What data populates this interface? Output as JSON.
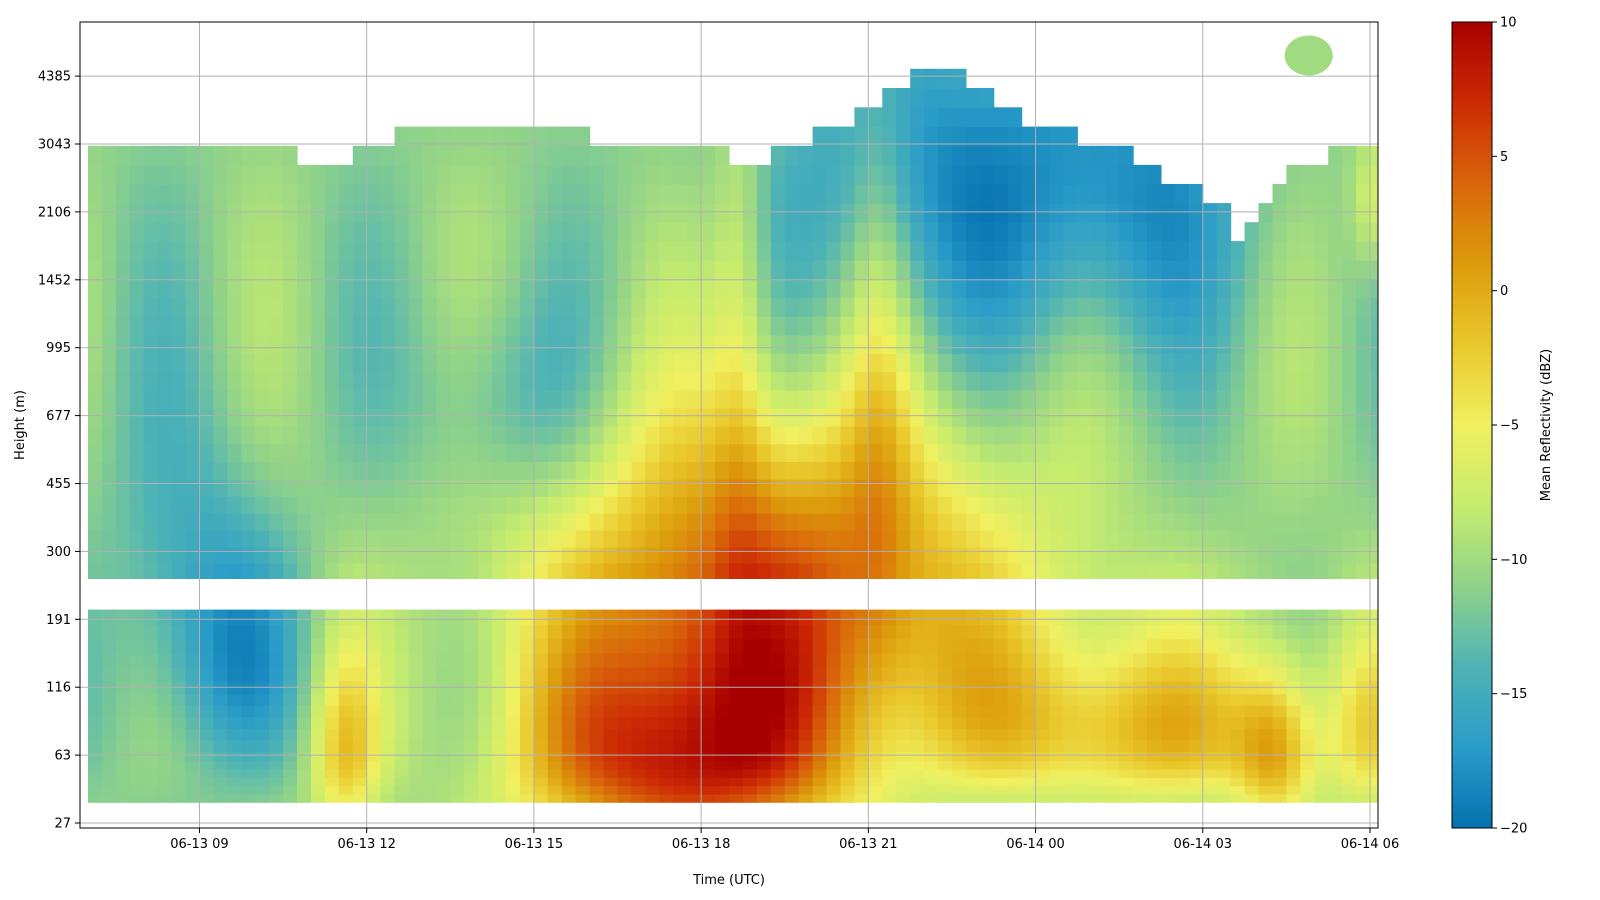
{
  "chart_data": {
    "type": "heatmap",
    "title": "",
    "xlabel": "Time (UTC)",
    "ylabel": "Height (m)",
    "x_ticks": [
      "06-13 09",
      "06-13 12",
      "06-13 15",
      "06-13 18",
      "06-13 21",
      "06-14 00",
      "06-14 03",
      "06-14 06"
    ],
    "y_ticks": [
      "27",
      "63",
      "116",
      "191",
      "300",
      "455",
      "677",
      "995",
      "1452",
      "2106",
      "3043",
      "4385"
    ],
    "xlim_hours": [
      6.8,
      30.4
    ],
    "grid": true,
    "colorbar": {
      "label": "Mean Reflectivity (dBZ)",
      "min": -20,
      "max": 10,
      "ticks": [
        "10",
        "5",
        "0",
        "−5",
        "−10",
        "−15",
        "−20"
      ],
      "tick_values": [
        10,
        5,
        0,
        -5,
        -10,
        -15,
        -20
      ],
      "colormap": [
        "#0571b0",
        "#2a9cc8",
        "#4fb3b5",
        "#8fd28a",
        "#c6ec6e",
        "#f0f060",
        "#e9c82c",
        "#dc9c0c",
        "#d9660a",
        "#cc2a05",
        "#a80000"
      ]
    },
    "cloud_top_m": [
      [
        6.9,
        3200
      ],
      [
        7.5,
        3100
      ],
      [
        8.5,
        3050
      ],
      [
        9.5,
        3000
      ],
      [
        10.5,
        2900
      ],
      [
        11.2,
        2700
      ],
      [
        11.8,
        2900
      ],
      [
        12.5,
        3200
      ],
      [
        13.5,
        3300
      ],
      [
        14.5,
        3400
      ],
      [
        15.5,
        3250
      ],
      [
        16.5,
        3100
      ],
      [
        17.5,
        2950
      ],
      [
        18.5,
        2850
      ],
      [
        19.0,
        2800
      ],
      [
        19.6,
        2900
      ],
      [
        20.5,
        3400
      ],
      [
        21.0,
        3800
      ],
      [
        21.5,
        4200
      ],
      [
        22.3,
        4500
      ],
      [
        23.0,
        4200
      ],
      [
        23.7,
        3500
      ],
      [
        24.3,
        3300
      ],
      [
        25.0,
        3100
      ],
      [
        25.8,
        2800
      ],
      [
        26.5,
        2500
      ],
      [
        27.3,
        2200
      ],
      [
        27.7,
        1800
      ],
      [
        28.0,
        2100
      ],
      [
        28.6,
        2700
      ],
      [
        29.3,
        2900
      ],
      [
        29.8,
        3000
      ],
      [
        30.2,
        3100
      ]
    ],
    "notes_features": [
      {
        "kind": "warm_core",
        "t_start": 14.5,
        "t_end": 21.0,
        "z_min_m": 27,
        "z_max_m": 455,
        "peak_dbz": 10
      },
      {
        "kind": "cloud_deck",
        "t_start": 20.5,
        "t_end": 27.5,
        "z_min_m": 1452,
        "z_max_m": 4500,
        "dbz": -18
      },
      {
        "kind": "elevated_cell",
        "t_center": 28.9,
        "z_center_m": 4900,
        "dbz": -10
      },
      {
        "kind": "gap_band",
        "z_min_m": 210,
        "z_max_m": 260
      }
    ]
  }
}
